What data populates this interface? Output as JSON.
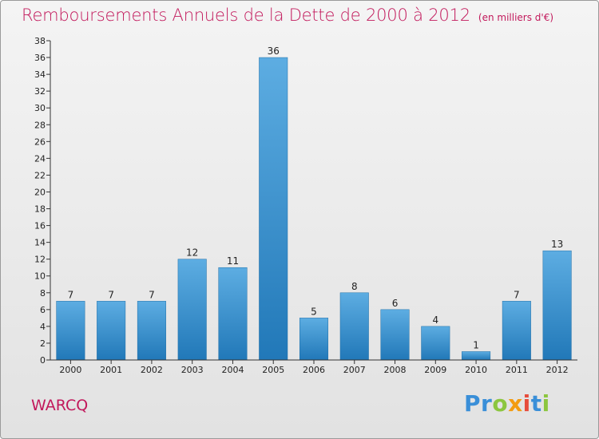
{
  "title": "Remboursements Annuels de la Dette de 2000 à 2012",
  "unit": "(en milliers d'€)",
  "commune": "WARCQ",
  "logo": {
    "letters": [
      {
        "char": "P",
        "color": "#3a8fd8"
      },
      {
        "char": "r",
        "color": "#3a8fd8"
      },
      {
        "char": "o",
        "color": "#8cc63f"
      },
      {
        "char": "x",
        "color": "#f39c12"
      },
      {
        "char": "i",
        "color": "#e74c3c"
      },
      {
        "char": "t",
        "color": "#3a8fd8"
      },
      {
        "char": "i",
        "color": "#8cc63f"
      }
    ]
  },
  "colors": {
    "title": "#c2185b",
    "bar_light": "#5dade2",
    "bar_dark": "#2178b8",
    "axis": "#333333"
  },
  "chart_data": {
    "type": "bar",
    "categories": [
      "2000",
      "2001",
      "2002",
      "2003",
      "2004",
      "2005",
      "2006",
      "2007",
      "2008",
      "2009",
      "2010",
      "2011",
      "2012"
    ],
    "values": [
      7,
      7,
      7,
      12,
      11,
      36,
      5,
      8,
      6,
      4,
      1,
      7,
      13
    ],
    "title": "Remboursements Annuels de la Dette de 2000 à 2012",
    "ylim": [
      0,
      38
    ],
    "yticks": [
      0,
      2,
      4,
      6,
      8,
      10,
      12,
      14,
      16,
      18,
      20,
      22,
      24,
      26,
      28,
      30,
      32,
      34,
      36,
      38
    ],
    "grid": false,
    "data_labels": true
  }
}
